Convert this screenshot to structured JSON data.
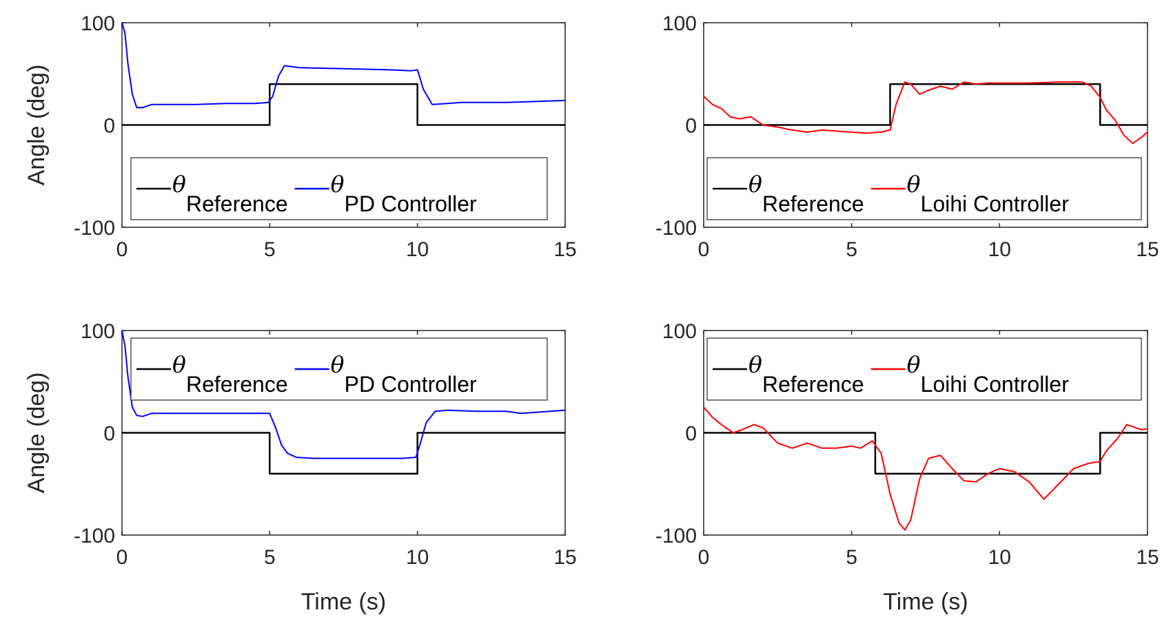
{
  "chart_data": [
    {
      "type": "line",
      "xlabel": "",
      "ylabel": "Angle (deg)",
      "xlim": [
        0,
        15
      ],
      "ylim": [
        -100,
        100
      ],
      "xticks": [
        "0",
        "5",
        "10",
        "15"
      ],
      "yticks": [
        "-100",
        "0",
        "100"
      ],
      "legend": {
        "position": "bottom",
        "symbol": "θ"
      },
      "series": [
        {
          "name": "Reference",
          "color": "#000000",
          "x": [
            0,
            5,
            5,
            10,
            10,
            15
          ],
          "y": [
            0,
            0,
            40,
            40,
            0,
            0
          ]
        },
        {
          "name": "PD Controller",
          "color": "#0000ff",
          "x": [
            0,
            0.1,
            0.2,
            0.35,
            0.5,
            0.7,
            1.0,
            1.5,
            2.5,
            3.5,
            4.5,
            4.95,
            5.1,
            5.3,
            5.5,
            6.0,
            7.5,
            9.0,
            9.8,
            10.0,
            10.2,
            10.5,
            11.5,
            13.0,
            15.0
          ],
          "y": [
            100,
            90,
            60,
            30,
            17,
            17,
            20,
            20,
            20,
            21,
            21,
            22,
            28,
            48,
            58,
            56,
            55,
            54,
            53,
            54,
            35,
            20,
            22,
            22,
            24
          ]
        }
      ]
    },
    {
      "type": "line",
      "xlabel": "",
      "ylabel": "",
      "xlim": [
        0,
        15
      ],
      "ylim": [
        -100,
        100
      ],
      "xticks": [
        "0",
        "5",
        "10",
        "15"
      ],
      "yticks": [
        "-100",
        "0",
        "100"
      ],
      "legend": {
        "position": "bottom",
        "symbol": "θ"
      },
      "series": [
        {
          "name": "Reference",
          "color": "#000000",
          "x": [
            0,
            6.3,
            6.3,
            13.4,
            13.4,
            15
          ],
          "y": [
            0,
            0,
            40,
            40,
            0,
            0
          ]
        },
        {
          "name": "Loihi Controller",
          "color": "#ff0000",
          "x": [
            0,
            0.3,
            0.6,
            0.9,
            1.2,
            1.6,
            2.0,
            2.5,
            3.0,
            3.5,
            4.0,
            4.5,
            5.0,
            5.5,
            6.0,
            6.3,
            6.5,
            6.8,
            7.0,
            7.3,
            7.6,
            8.0,
            8.4,
            8.8,
            9.2,
            9.6,
            10.0,
            11.0,
            12.0,
            12.8,
            13.1,
            13.4,
            13.6,
            13.9,
            14.2,
            14.5,
            14.8,
            15.0
          ],
          "y": [
            28,
            20,
            16,
            8,
            6,
            8,
            0,
            -2,
            -5,
            -7,
            -5,
            -6,
            -7,
            -8,
            -7,
            -5,
            20,
            42,
            40,
            30,
            34,
            38,
            35,
            42,
            40,
            41,
            41,
            41,
            42,
            42,
            38,
            27,
            15,
            5,
            -10,
            -18,
            -12,
            -7
          ]
        }
      ]
    },
    {
      "type": "line",
      "xlabel": "Time (s)",
      "ylabel": "Angle (deg)",
      "xlim": [
        0,
        15
      ],
      "ylim": [
        -100,
        100
      ],
      "xticks": [
        "0",
        "5",
        "10",
        "15"
      ],
      "yticks": [
        "-100",
        "0",
        "100"
      ],
      "legend": {
        "position": "top",
        "symbol": "θ"
      },
      "series": [
        {
          "name": "Reference",
          "color": "#000000",
          "x": [
            0,
            5,
            5,
            10,
            10,
            15
          ],
          "y": [
            0,
            0,
            -40,
            -40,
            0,
            0
          ]
        },
        {
          "name": "PD Controller",
          "color": "#0000ff",
          "x": [
            0,
            0.1,
            0.2,
            0.35,
            0.5,
            0.7,
            1.0,
            2.0,
            3.0,
            4.0,
            5.0,
            5.2,
            5.4,
            5.6,
            5.9,
            6.5,
            7.5,
            8.5,
            9.5,
            9.95,
            10.1,
            10.3,
            10.6,
            11.0,
            12.0,
            13.0,
            13.5,
            14.0,
            15.0
          ],
          "y": [
            100,
            85,
            55,
            25,
            17,
            16,
            19,
            19,
            19,
            19,
            19,
            5,
            -12,
            -20,
            -24,
            -25,
            -25,
            -25,
            -25,
            -24,
            -10,
            10,
            21,
            22,
            21,
            21,
            19,
            20,
            22
          ]
        }
      ]
    },
    {
      "type": "line",
      "xlabel": "Time (s)",
      "ylabel": "",
      "xlim": [
        0,
        15
      ],
      "ylim": [
        -100,
        100
      ],
      "xticks": [
        "0",
        "5",
        "10",
        "15"
      ],
      "yticks": [
        "-100",
        "0",
        "100"
      ],
      "legend": {
        "position": "top",
        "symbol": "θ"
      },
      "series": [
        {
          "name": "Reference",
          "color": "#000000",
          "x": [
            0,
            5.8,
            5.8,
            13.4,
            13.4,
            15
          ],
          "y": [
            0,
            0,
            -40,
            -40,
            0,
            0
          ]
        },
        {
          "name": "Loihi Controller",
          "color": "#ff0000",
          "x": [
            0,
            0.3,
            0.6,
            1.0,
            1.3,
            1.7,
            2.0,
            2.5,
            3.0,
            3.5,
            4.0,
            4.5,
            5.0,
            5.3,
            5.7,
            6.0,
            6.3,
            6.6,
            6.8,
            7.0,
            7.3,
            7.6,
            8.0,
            8.4,
            8.8,
            9.2,
            9.6,
            10.0,
            10.5,
            11.0,
            11.5,
            12.0,
            12.5,
            13.0,
            13.4,
            13.6,
            14.0,
            14.3,
            14.6,
            14.8,
            15.0
          ],
          "y": [
            25,
            15,
            8,
            0,
            3,
            8,
            5,
            -10,
            -15,
            -10,
            -15,
            -15,
            -13,
            -15,
            -8,
            -20,
            -60,
            -88,
            -95,
            -85,
            -45,
            -25,
            -22,
            -35,
            -47,
            -48,
            -40,
            -35,
            -38,
            -48,
            -65,
            -50,
            -35,
            -30,
            -28,
            -18,
            -5,
            8,
            5,
            3,
            4
          ]
        }
      ]
    }
  ]
}
